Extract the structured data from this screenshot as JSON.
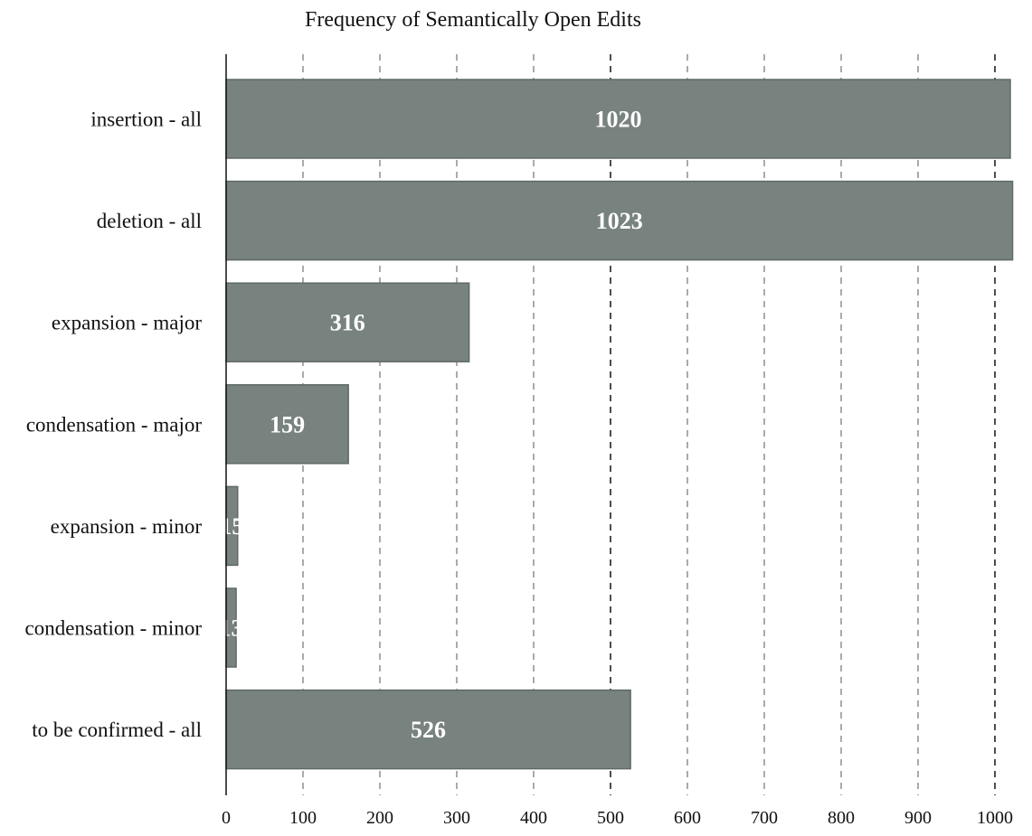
{
  "chart_data": {
    "type": "bar",
    "orientation": "horizontal",
    "title": "Frequency of Semantically Open Edits",
    "xlabel": "",
    "ylabel": "",
    "categories": [
      "insertion - all",
      "deletion - all",
      "expansion - major",
      "condensation - major",
      "expansion - minor",
      "condensation - minor",
      "to be confirmed - all"
    ],
    "values": [
      1020,
      1023,
      316,
      159,
      15,
      13,
      526
    ],
    "xlim": [
      0,
      1025
    ],
    "xticks": [
      0,
      100,
      200,
      300,
      400,
      500,
      600,
      700,
      800,
      900,
      1000
    ],
    "emphasized_gridlines": [
      500,
      1000
    ],
    "grid": true,
    "legend": "none",
    "colors": {
      "bar_fill": "#78827f",
      "bar_stroke": "#5f6a67",
      "value_text": "#ffffff",
      "grid": "#666666",
      "grid_emphasis": "#222222",
      "axis": "#111111",
      "text": "#111111"
    }
  }
}
